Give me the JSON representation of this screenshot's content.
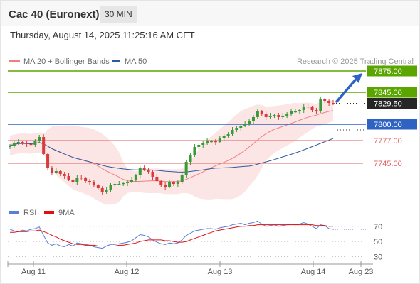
{
  "header": {
    "instrument": "Cac 40 (Euronext)",
    "timeframe": "30 MIN",
    "datetime": "Thursday, August 14, 2025 11:25:16 AM CET"
  },
  "chart_data": [
    {
      "type": "candlestick",
      "title": "Cac 40 (Euronext)",
      "legend": [
        {
          "name": "MA 20 + Bollinger Bands",
          "color": "#f08080"
        },
        {
          "name": "MA 50",
          "color": "#2e5aa0"
        }
      ],
      "legend_placement": "top-left",
      "attribution": "Research © 2025 Trading Central",
      "x_tick_labels": [
        "Aug 11",
        "Aug 12",
        "Aug 13",
        "Aug 14",
        "Aug 23"
      ],
      "ylim": [
        7690,
        7895
      ],
      "grid": false,
      "current_price": "7829.50",
      "levels": [
        {
          "label": "7875.00",
          "value": 7875,
          "kind": "resistance",
          "color": "#5aa500"
        },
        {
          "label": "7845.00",
          "value": 7845,
          "kind": "resistance",
          "color": "#5aa500"
        },
        {
          "label": "7800.00",
          "value": 7800,
          "kind": "pivot",
          "color": "#2e63c4"
        },
        {
          "label": "7777.00",
          "value": 7777,
          "kind": "support",
          "color": "#e06060"
        },
        {
          "label": "7745.00",
          "value": 7745,
          "kind": "support",
          "color": "#e06060"
        }
      ],
      "projection": {
        "from": 7830,
        "to": 7875,
        "color": "#2e63c4"
      },
      "close": [
        7770,
        7773,
        7775,
        7774,
        7772,
        7771,
        7777,
        7782,
        7758,
        7738,
        7732,
        7734,
        7730,
        7727,
        7722,
        7718,
        7725,
        7724,
        7720,
        7718,
        7714,
        7710,
        7704,
        7708,
        7715,
        7716,
        7716,
        7717,
        7719,
        7722,
        7728,
        7738,
        7736,
        7733,
        7726,
        7720,
        7715,
        7712,
        7718,
        7716,
        7718,
        7728,
        7747,
        7756,
        7768,
        7771,
        7773,
        7776,
        7776,
        7775,
        7780,
        7784,
        7786,
        7792,
        7795,
        7798,
        7800,
        7805,
        7810,
        7818,
        7815,
        7810,
        7812,
        7813,
        7810,
        7812,
        7815,
        7818,
        7818,
        7820,
        7825,
        7824,
        7820,
        7818,
        7835,
        7833,
        7830,
        7829
      ]
    },
    {
      "type": "line",
      "title": "",
      "legend": [
        {
          "name": "RSI",
          "color": "#5b7fd6"
        },
        {
          "name": "9MA",
          "color": "#e01010"
        }
      ],
      "legend_placement": "top-left",
      "y_tick_labels": [
        "70",
        "50",
        "30"
      ],
      "reference_lines": [
        70,
        50,
        30
      ],
      "ylim": [
        20,
        82
      ],
      "series": [
        {
          "name": "RSI",
          "values": [
            66,
            64,
            63,
            65,
            64,
            66,
            67,
            69,
            58,
            48,
            45,
            47,
            44,
            43,
            46,
            44,
            48,
            47,
            46,
            45,
            43,
            42,
            41,
            44,
            46,
            46,
            47,
            48,
            49,
            51,
            55,
            59,
            58,
            56,
            52,
            49,
            47,
            46,
            48,
            47,
            48,
            52,
            58,
            61,
            64,
            65,
            66,
            67,
            67,
            66,
            68,
            69,
            70,
            72,
            73,
            74,
            72,
            74,
            75,
            77,
            73,
            70,
            71,
            72,
            70,
            71,
            72,
            73,
            72,
            73,
            75,
            73,
            70,
            67,
            72,
            71,
            67,
            66
          ]
        },
        {
          "name": "9MA",
          "values": [
            62,
            62,
            63,
            63,
            63,
            64,
            64,
            65,
            63,
            61,
            58,
            56,
            53,
            51,
            49,
            47,
            46,
            46,
            45,
            45,
            45,
            44,
            44,
            44,
            44,
            44,
            45,
            45,
            46,
            47,
            48,
            50,
            51,
            52,
            52,
            52,
            52,
            51,
            51,
            50,
            49,
            49,
            50,
            52,
            54,
            56,
            58,
            60,
            62,
            64,
            65,
            66,
            67,
            68,
            69,
            70,
            70,
            71,
            71,
            72,
            72,
            72,
            72,
            72,
            72,
            72,
            72,
            72,
            72,
            72,
            72,
            72,
            72,
            71,
            71,
            71,
            70,
            70
          ]
        }
      ]
    }
  ]
}
